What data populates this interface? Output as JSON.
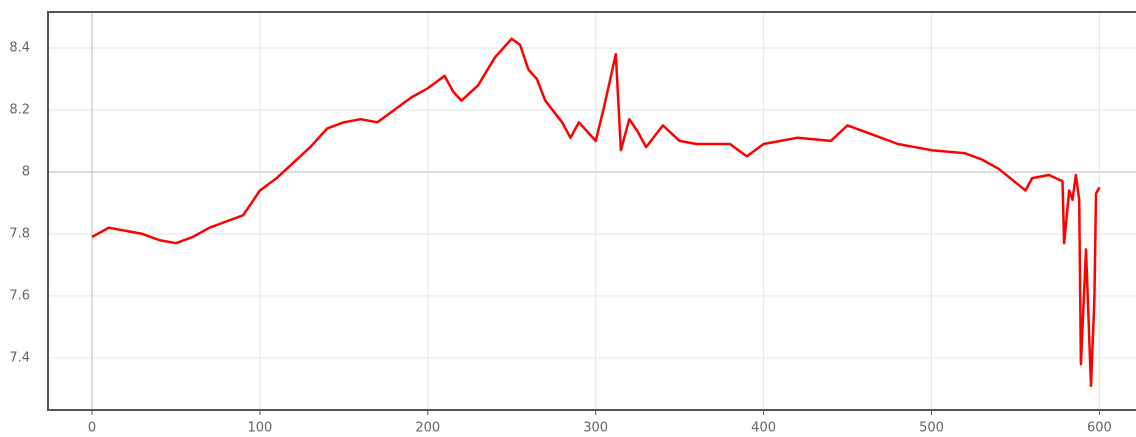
{
  "chart_data": {
    "type": "line",
    "x": [
      0,
      10,
      20,
      30,
      40,
      50,
      60,
      70,
      80,
      90,
      100,
      110,
      120,
      130,
      140,
      150,
      160,
      170,
      180,
      190,
      200,
      210,
      215,
      220,
      230,
      240,
      250,
      255,
      260,
      265,
      270,
      280,
      285,
      290,
      300,
      305,
      312,
      315,
      320,
      325,
      330,
      340,
      350,
      360,
      380,
      390,
      400,
      420,
      440,
      450,
      460,
      480,
      500,
      520,
      530,
      540,
      556,
      560,
      570,
      578,
      579,
      582,
      584,
      586,
      588,
      589,
      592,
      595,
      597,
      598,
      600
    ],
    "series": [
      {
        "color": "#ff0000",
        "values": [
          7.79,
          7.82,
          7.81,
          7.8,
          7.78,
          7.77,
          7.79,
          7.82,
          7.84,
          7.86,
          7.94,
          7.98,
          8.03,
          8.08,
          8.14,
          8.16,
          8.17,
          8.16,
          8.2,
          8.24,
          8.27,
          8.31,
          8.26,
          8.23,
          8.28,
          8.37,
          8.43,
          8.41,
          8.33,
          8.3,
          8.23,
          8.16,
          8.11,
          8.16,
          8.1,
          8.21,
          8.38,
          8.07,
          8.17,
          8.13,
          8.08,
          8.15,
          8.1,
          8.09,
          8.09,
          8.05,
          8.09,
          8.11,
          8.1,
          8.15,
          8.13,
          8.09,
          8.07,
          8.06,
          8.04,
          8.01,
          7.94,
          7.98,
          7.99,
          7.97,
          7.77,
          7.94,
          7.91,
          7.99,
          7.91,
          7.38,
          7.75,
          7.31,
          7.59,
          7.93,
          7.95
        ]
      }
    ],
    "xlim": [
      -26.2,
      621.8
    ],
    "xticks": [
      0,
      100,
      200,
      300,
      400,
      500,
      600
    ],
    "ylim": [
      7.232,
      8.516
    ],
    "yticks": [
      7.4,
      7.6,
      7.8,
      8,
      8.2,
      8.4
    ],
    "grid": true
  }
}
